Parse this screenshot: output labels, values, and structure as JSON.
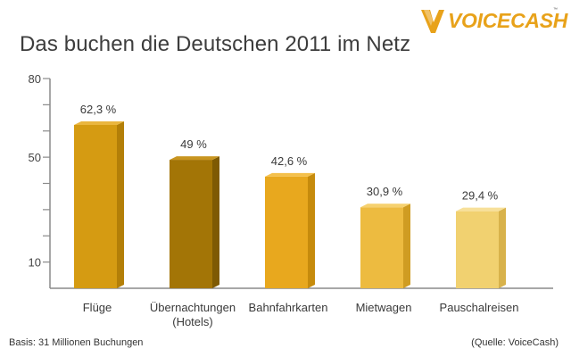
{
  "logo": {
    "text": "VOICECASH",
    "tm": "™"
  },
  "footer": {
    "basis": "Basis: 31 Millionen Buchungen",
    "source": "(Quelle: VoiceCash)"
  },
  "chart_data": {
    "type": "bar",
    "title": "Das buchen die Deutschen 2011 im Netz",
    "categories": [
      "Flüge",
      "Übernachtungen\n(Hotels)",
      "Bahnfahrkarten",
      "Mietwagen",
      "Pauschalreisen"
    ],
    "values": [
      62.3,
      49,
      42.6,
      30.9,
      29.4
    ],
    "value_labels": [
      "62,3 %",
      "49 %",
      "42,6 %",
      "30,9 %",
      "29,4 %"
    ],
    "colors": [
      {
        "front": "#d59b12",
        "side": "#b37f08",
        "top": "#eab63e"
      },
      {
        "front": "#a37506",
        "side": "#7e5a03",
        "top": "#c89520"
      },
      {
        "front": "#e8a81e",
        "side": "#c68b0c",
        "top": "#f4c04c"
      },
      {
        "front": "#edbb40",
        "side": "#cf9c22",
        "top": "#f6d16f"
      },
      {
        "front": "#f1d170",
        "side": "#d8b24b",
        "top": "#f7e09a"
      }
    ],
    "y_tick_labels": [
      "80",
      "50",
      "10"
    ],
    "y_label_values": [
      80,
      50,
      10
    ],
    "y_ticks": [
      80,
      70,
      60,
      50,
      40,
      30,
      20,
      10
    ],
    "ylim": [
      0,
      80
    ],
    "xlabel": "",
    "ylabel": "",
    "grid": false,
    "legend": "none"
  }
}
